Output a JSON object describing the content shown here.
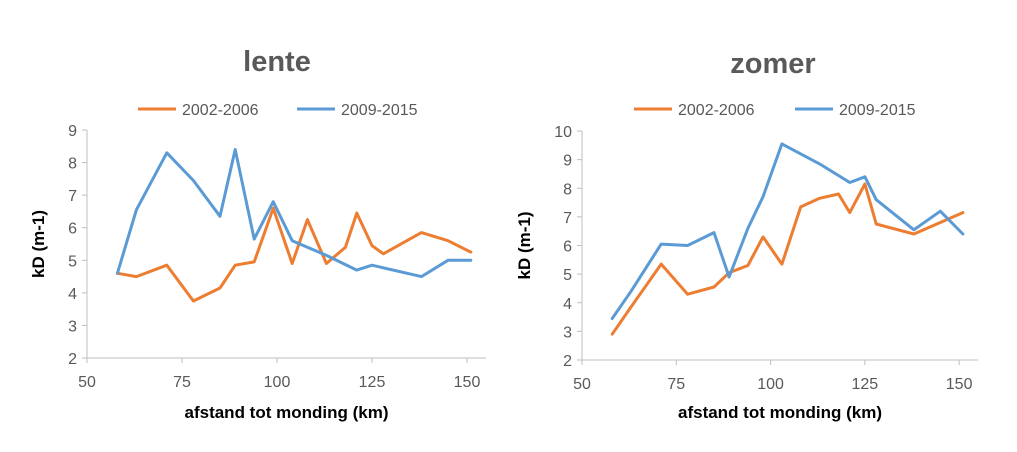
{
  "colors": {
    "orange": "#ED7D31",
    "blue": "#5B9BD5",
    "axis": "#BFBFBF",
    "text": "#595959"
  },
  "chart_data": [
    {
      "type": "line",
      "title": "lente",
      "xlabel": "afstand tot monding (km)",
      "ylabel": "kD (m-1)",
      "xlim": [
        50,
        155
      ],
      "ylim": [
        2,
        9
      ],
      "xticks": [
        "50",
        "75",
        "100",
        "125",
        "150"
      ],
      "yticks": [
        "2",
        "3",
        "4",
        "5",
        "6",
        "7",
        "8",
        "9"
      ],
      "grid": false,
      "legend": "top",
      "series": [
        {
          "name": "2002-2006",
          "color": "#ED7D31",
          "x": [
            58,
            63,
            71,
            78,
            85,
            89,
            94,
            99,
            104,
            108,
            113,
            118,
            121,
            125,
            128,
            138,
            145,
            151
          ],
          "y": [
            4.6,
            4.5,
            4.85,
            3.75,
            4.15,
            4.85,
            4.95,
            6.6,
            4.9,
            6.25,
            4.9,
            5.4,
            6.45,
            5.45,
            5.2,
            5.85,
            5.6,
            5.25
          ]
        },
        {
          "name": "2009-2015",
          "color": "#5B9BD5",
          "x": [
            58,
            63,
            71,
            78,
            85,
            89,
            94,
            99,
            104,
            113,
            121,
            125,
            138,
            145,
            151
          ],
          "y": [
            4.6,
            6.55,
            8.3,
            7.45,
            6.35,
            8.4,
            5.65,
            6.8,
            5.6,
            5.15,
            4.7,
            4.85,
            4.5,
            5.0,
            5.0
          ]
        }
      ]
    },
    {
      "type": "line",
      "title": "zomer",
      "xlabel": "afstand tot monding (km)",
      "ylabel": "kD (m-1)",
      "xlim": [
        50,
        155
      ],
      "ylim": [
        2,
        10
      ],
      "xticks": [
        "50",
        "75",
        "100",
        "125",
        "150"
      ],
      "yticks": [
        "2",
        "3",
        "4",
        "5",
        "6",
        "7",
        "8",
        "9",
        "10"
      ],
      "grid": false,
      "legend": "top",
      "series": [
        {
          "name": "2002-2006",
          "color": "#ED7D31",
          "x": [
            58,
            63,
            71,
            78,
            85,
            89,
            94,
            98,
            103,
            108,
            113,
            118,
            121,
            125,
            128,
            138,
            151
          ],
          "y": [
            2.9,
            3.85,
            5.35,
            4.3,
            4.55,
            5.05,
            5.3,
            6.3,
            5.35,
            7.35,
            7.65,
            7.8,
            7.15,
            8.15,
            6.75,
            6.4,
            7.15
          ]
        },
        {
          "name": "2009-2015",
          "color": "#5B9BD5",
          "x": [
            58,
            63,
            71,
            78,
            85,
            89,
            94,
            98,
            103,
            113,
            121,
            125,
            128,
            138,
            145,
            151
          ],
          "y": [
            3.45,
            4.4,
            6.05,
            6.0,
            6.45,
            4.9,
            6.6,
            7.7,
            9.55,
            8.85,
            8.2,
            8.4,
            7.6,
            6.55,
            7.2,
            6.4
          ]
        }
      ]
    }
  ]
}
